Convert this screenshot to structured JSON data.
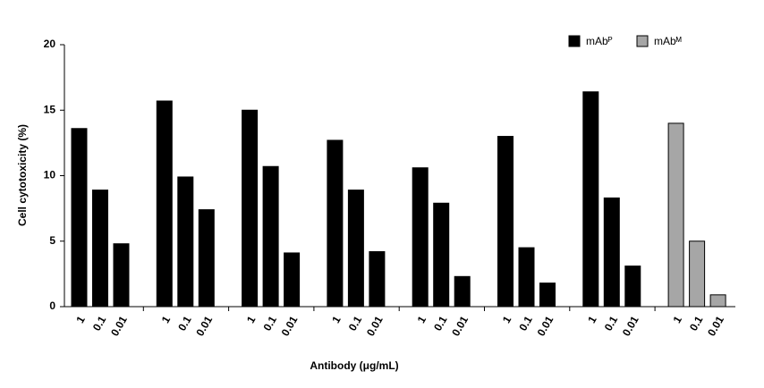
{
  "chart_data": {
    "type": "bar",
    "y_label": "Cell cytotoxicity (%)",
    "x_label": "Antibody (μg/mL)",
    "categories": [
      "1",
      "0.1",
      "0.01",
      "1",
      "0.1",
      "0.01",
      "1",
      "0.1",
      "0.01",
      "1",
      "0.1",
      "0.01",
      "1",
      "0.1",
      "0.01",
      "1",
      "0.1",
      "0.01",
      "1",
      "0.1",
      "0.01",
      "1",
      "0.1",
      "0.01"
    ],
    "series": [
      {
        "name": "mAbᴾ",
        "color": "#000000",
        "values": [
          13.6,
          8.9,
          4.8,
          15.7,
          9.9,
          7.4,
          15.0,
          10.7,
          4.1,
          12.7,
          8.9,
          4.2,
          10.6,
          7.9,
          2.3,
          13.0,
          4.5,
          1.8,
          16.4,
          8.3,
          3.1,
          null,
          null,
          null
        ]
      },
      {
        "name": "mAbᴹ",
        "color": "#a6a6a6",
        "values": [
          null,
          null,
          null,
          null,
          null,
          null,
          null,
          null,
          null,
          null,
          null,
          null,
          null,
          null,
          null,
          null,
          null,
          null,
          null,
          null,
          null,
          14.0,
          5.0,
          0.9
        ]
      }
    ],
    "ylim": [
      0,
      20
    ],
    "yticks": [
      0,
      5,
      10,
      15,
      20
    ],
    "legend": "top-right"
  }
}
